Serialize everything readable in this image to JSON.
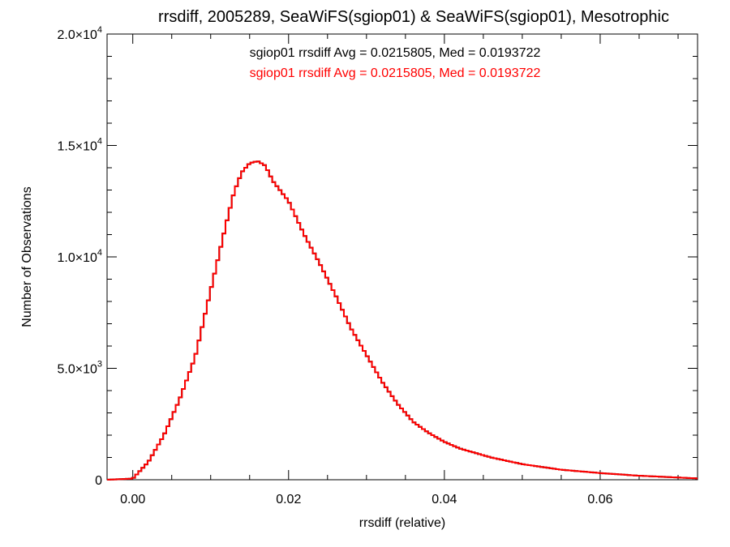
{
  "chart_data": {
    "type": "line",
    "title": "rrsdiff, 2005289, SeaWiFS(sgiop01) & SeaWiFS(sgiop01), Mesotrophic",
    "xlabel": "rrsdiff (relative)",
    "ylabel": "Number of Observations",
    "xlim": [
      -0.0033,
      0.0725
    ],
    "ylim": [
      0,
      20000
    ],
    "x_ticks": [
      {
        "value": 0.0,
        "label": "0.00"
      },
      {
        "value": 0.02,
        "label": "0.02"
      },
      {
        "value": 0.04,
        "label": "0.04"
      },
      {
        "value": 0.06,
        "label": "0.06"
      }
    ],
    "y_ticks": [
      {
        "value": 0,
        "mant": "0",
        "exp": ""
      },
      {
        "value": 5000,
        "mant": "5.0×10",
        "exp": "3"
      },
      {
        "value": 10000,
        "mant": "1.0×10",
        "exp": "4"
      },
      {
        "value": 15000,
        "mant": "1.5×10",
        "exp": "4"
      },
      {
        "value": 20000,
        "mant": "2.0×10",
        "exp": "4"
      }
    ],
    "annotations": [
      {
        "text": "sgiop01 rrsdiff Avg = 0.0215805, Med = 0.0193722",
        "color": "#000000"
      },
      {
        "text": "sgiop01 rrsdiff Avg = 0.0215805, Med = 0.0193722",
        "color": "#ff0000"
      }
    ],
    "series": [
      {
        "color": "#000000",
        "x": [
          -0.0033,
          0.0,
          0.002,
          0.004,
          0.006,
          0.008,
          0.01,
          0.012,
          0.013,
          0.014,
          0.015,
          0.016,
          0.017,
          0.018,
          0.02,
          0.022,
          0.024,
          0.026,
          0.028,
          0.03,
          0.032,
          0.034,
          0.036,
          0.038,
          0.04,
          0.042,
          0.044,
          0.046,
          0.048,
          0.05,
          0.055,
          0.06,
          0.065,
          0.07,
          0.0725
        ],
        "y": [
          0,
          50,
          800,
          2000,
          3600,
          5500,
          8500,
          11500,
          12900,
          13800,
          14200,
          14300,
          14100,
          13400,
          12500,
          11000,
          9700,
          8300,
          6800,
          5600,
          4400,
          3400,
          2600,
          2100,
          1700,
          1400,
          1200,
          1000,
          850,
          700,
          450,
          300,
          180,
          100,
          60
        ]
      },
      {
        "color": "#ff0000",
        "x": [
          -0.0033,
          0.0,
          0.002,
          0.004,
          0.006,
          0.008,
          0.01,
          0.012,
          0.013,
          0.014,
          0.015,
          0.016,
          0.017,
          0.018,
          0.02,
          0.022,
          0.024,
          0.026,
          0.028,
          0.03,
          0.032,
          0.034,
          0.036,
          0.038,
          0.04,
          0.042,
          0.044,
          0.046,
          0.048,
          0.05,
          0.055,
          0.06,
          0.065,
          0.07,
          0.0725
        ],
        "y": [
          0,
          50,
          800,
          2000,
          3600,
          5500,
          8500,
          11500,
          12900,
          13800,
          14200,
          14300,
          14100,
          13400,
          12500,
          11000,
          9700,
          8300,
          6800,
          5600,
          4400,
          3400,
          2600,
          2100,
          1700,
          1400,
          1200,
          1000,
          850,
          700,
          450,
          300,
          180,
          100,
          60
        ]
      }
    ],
    "grid": false,
    "legend": "none"
  }
}
